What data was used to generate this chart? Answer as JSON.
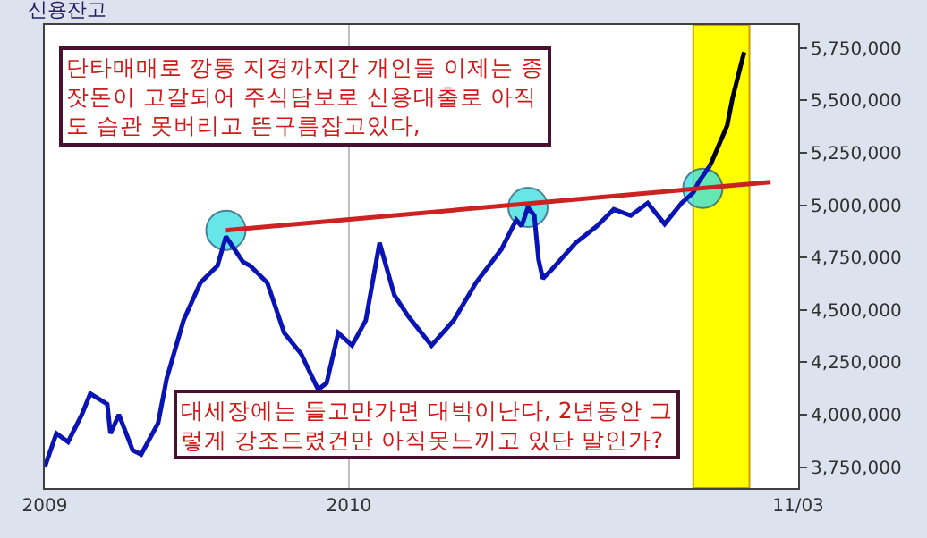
{
  "chart_data": {
    "type": "line",
    "title": "신용잔고",
    "annotations": [
      "단타매매로 깡통 지경까지간 개인들 이제는 종\n잣돈이 고갈되어 주식담보로 신용대출로 아직\n도 습관 못버리고 뜬구름잡고있다,",
      "대세장에는 들고만가면 대박이난다, 2년동안 그\n렇게 강조드렸건만 아직못느끼고 있단 말인가?"
    ],
    "series": [
      {
        "color": "#0a14b4",
        "x": [
          "2009-03-20",
          "2009-03-31",
          "2009-04-11",
          "2009-04-24",
          "2009-05-02",
          "2009-05-18",
          "2009-05-21",
          "2009-05-29",
          "2009-06-11",
          "2009-06-19",
          "2009-07-05",
          "2009-07-13",
          "2009-07-29",
          "2009-08-14",
          "2009-08-30",
          "2009-09-07",
          "2009-09-23",
          "2009-09-30",
          "2009-10-16",
          "2009-11-01",
          "2009-11-17",
          "2009-12-03",
          "2009-12-11",
          "2009-12-22",
          "2010-01-04",
          "2010-01-17",
          "2010-01-30",
          "2010-02-13",
          "2010-02-26",
          "2010-03-20",
          "2010-04-10",
          "2010-05-01",
          "2010-05-25",
          "2010-06-08",
          "2010-06-13",
          "2010-06-19",
          "2010-06-25",
          "2010-06-29",
          "2010-07-03",
          "2010-07-11",
          "2010-08-03",
          "2010-08-23",
          "2010-09-08",
          "2010-09-24",
          "2010-10-10",
          "2010-10-26",
          "2010-11-11",
          "2010-11-22",
          "2010-11-27",
          "2010-12-08"
        ],
        "values": [
          3750000,
          3910000,
          3870000,
          4000000,
          4100000,
          4050000,
          3910000,
          4000000,
          3830000,
          3810000,
          3960000,
          4170000,
          4450000,
          4630000,
          4710000,
          4850000,
          4730000,
          4710000,
          4630000,
          4390000,
          4290000,
          4120000,
          4150000,
          4390000,
          4330000,
          4450000,
          4820000,
          4570000,
          4470000,
          4330000,
          4450000,
          4630000,
          4790000,
          4930000,
          4900000,
          4990000,
          4950000,
          4740000,
          4650000,
          4690000,
          4820000,
          4900000,
          4980000,
          4950000,
          5010000,
          4910000,
          5010000,
          5060000,
          5110000,
          5190000
        ]
      },
      {
        "color": "#000000",
        "x": [
          "2010-12-08",
          "2010-12-24",
          "2010-12-29",
          "2011-01-09"
        ],
        "values": [
          5190000,
          5380000,
          5510000,
          5730000
        ]
      },
      {
        "type": "line",
        "color": "#cc2222",
        "x": [
          "2009-09-07",
          "2011-02-03"
        ],
        "values": [
          4880000,
          5110000
        ]
      },
      {
        "type": "scatter",
        "color": "#40e0e0",
        "marker": "circle",
        "x": [
          "2009-09-07",
          "2010-06-19",
          "2010-12-01"
        ],
        "values": [
          4880000,
          4990000,
          5080000
        ]
      }
    ],
    "bands": [
      {
        "axis": "x",
        "from": "2010-11-22",
        "to": "2011-01-14",
        "color": "#ffff00"
      }
    ],
    "xlim": [
      "2009-03-20",
      "2011-03-01"
    ],
    "xticks": [
      {
        "value": "2009-03-20",
        "label": "2009"
      },
      {
        "value": "2010-01-01",
        "label": "2010"
      },
      {
        "value": "2011-03-01",
        "label": "11/03"
      }
    ],
    "ylim": [
      3650000,
      5860000
    ],
    "yticks": [
      {
        "value": 3750000,
        "label": "3,750,000"
      },
      {
        "value": 4000000,
        "label": "4,000,000"
      },
      {
        "value": 4250000,
        "label": "4,250,000"
      },
      {
        "value": 4500000,
        "label": "4,500,000"
      },
      {
        "value": 4750000,
        "label": "4,750,000"
      },
      {
        "value": 5000000,
        "label": "5,000,000"
      },
      {
        "value": 5250000,
        "label": "5,250,000"
      },
      {
        "value": 5500000,
        "label": "5,500,000"
      },
      {
        "value": 5750000,
        "label": "5,750,000"
      }
    ],
    "grid": "x",
    "legend": false
  }
}
